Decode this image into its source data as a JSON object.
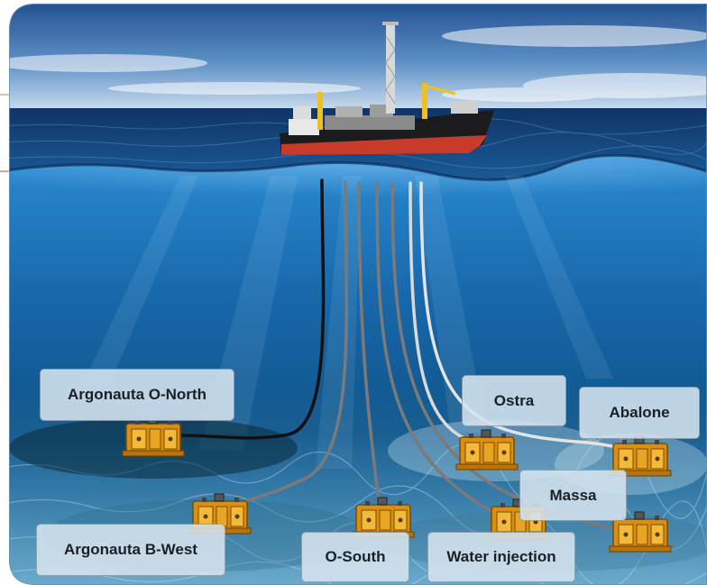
{
  "fields": [
    {
      "id": "argonauta-o-north",
      "label": "Argonauta O-North"
    },
    {
      "id": "argonauta-b-west",
      "label": "Argonauta B-West"
    },
    {
      "id": "o-south",
      "label": "O-South"
    },
    {
      "id": "water-injection",
      "label": "Water injection"
    },
    {
      "id": "ostra",
      "label": "Ostra"
    },
    {
      "id": "abalone",
      "label": "Abalone"
    },
    {
      "id": "massa",
      "label": "Massa"
    }
  ],
  "colors": {
    "sky_top": "#1f4f8f",
    "sky_horizon": "#cfe0f0",
    "sea_surface": "#123f78",
    "underwater_top": "#1e78c0",
    "underwater_bottom": "#0c4d7e",
    "hull": "#c83a2a",
    "riser_black": "#111111",
    "riser_grey": "#7a7a7a",
    "riser_white": "#e4e4e4",
    "manifold": "#e3a11a"
  }
}
